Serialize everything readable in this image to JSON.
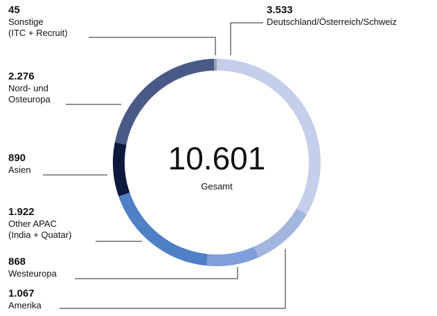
{
  "chart_data": {
    "type": "donut",
    "categories": [
      "Deutschland/Österreich/Schweiz",
      "Amerika",
      "Westeuropa",
      "Other APAC\n(India + Quatar)",
      "Asien",
      "Nord- und\nOsteuropa",
      "Sonstige\n(ITC + Recruit)"
    ],
    "values": [
      3533,
      1067,
      868,
      1922,
      890,
      2276,
      45
    ],
    "value_labels": [
      "3.533",
      "1.067",
      "868",
      "1.922",
      "890",
      "2.276",
      "45"
    ],
    "colors": [
      "#c5cfec",
      "#a3b6e0",
      "#7e9fd9",
      "#4f7fc4",
      "#0d1a3e",
      "#4a5a87",
      "#9aa0b0"
    ],
    "total": {
      "value": 10601,
      "label": "10.601"
    },
    "total_caption": "Gesamt"
  }
}
